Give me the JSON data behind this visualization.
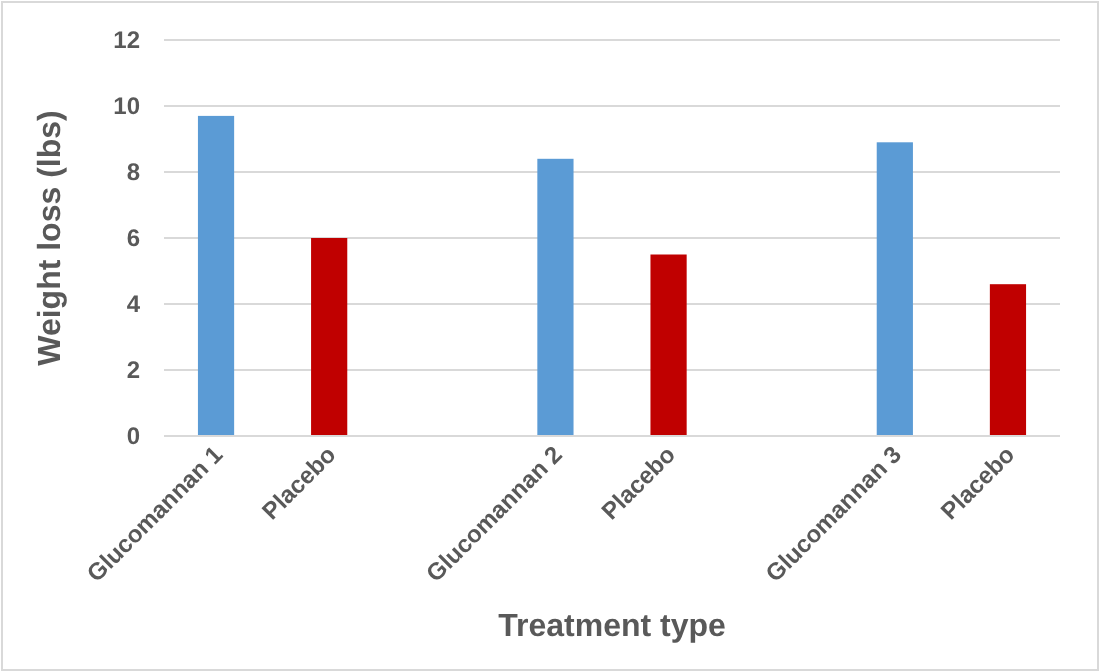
{
  "chart_data": {
    "type": "bar",
    "xlabel": "Treatment type",
    "ylabel": "Weight loss (lbs)",
    "categories": [
      "Glucomannan 1",
      "Placebo",
      null,
      "Glucomannan 2",
      "Placebo",
      null,
      "Glucomannan 3",
      "Placebo"
    ],
    "values": [
      9.7,
      6.0,
      null,
      8.4,
      5.5,
      null,
      8.9,
      4.6
    ],
    "colors": [
      "#5b9bd5",
      "#c00000",
      null,
      "#5b9bd5",
      "#c00000",
      null,
      "#5b9bd5",
      "#c00000"
    ],
    "ylim": [
      0,
      12
    ],
    "yticks": [
      0,
      2,
      4,
      6,
      8,
      10,
      12
    ],
    "grid": "y"
  }
}
